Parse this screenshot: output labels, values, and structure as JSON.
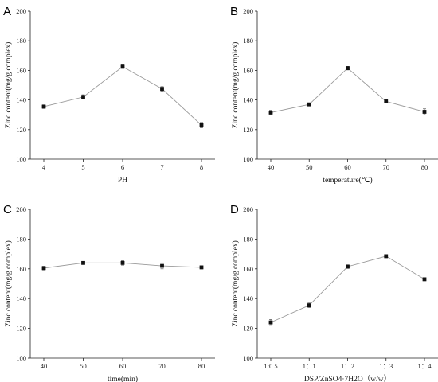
{
  "chart_data": [
    {
      "panel": "A",
      "type": "line",
      "categories": [
        "4",
        "5",
        "6",
        "7",
        "8"
      ],
      "values": [
        135.5,
        142,
        162.5,
        147.5,
        123
      ],
      "errors": [
        1.2,
        1.5,
        1.2,
        1.5,
        1.8
      ],
      "xlabel": "PH",
      "ylabel": "Zinc content(mg/g complex)",
      "ylim": [
        100,
        200
      ],
      "yticks": [
        "100",
        "120",
        "140",
        "160",
        "180",
        "200"
      ],
      "grid": false
    },
    {
      "panel": "B",
      "type": "line",
      "categories": [
        "40",
        "50",
        "60",
        "70",
        "80"
      ],
      "values": [
        131.5,
        137,
        161.5,
        139,
        132
      ],
      "errors": [
        1.5,
        1.0,
        1.2,
        1.0,
        2.0
      ],
      "xlabel": "temperature(℃)",
      "ylabel": "Zinc content(mg/g complex)",
      "ylim": [
        100,
        200
      ],
      "yticks": [
        "100",
        "120",
        "140",
        "160",
        "180",
        "200"
      ],
      "grid": false
    },
    {
      "panel": "C",
      "type": "line",
      "categories": [
        "40",
        "50",
        "60",
        "70",
        "80"
      ],
      "values": [
        160.5,
        164,
        164,
        162,
        161
      ],
      "errors": [
        1.2,
        1.0,
        1.5,
        2.0,
        1.0
      ],
      "xlabel": "time(min)",
      "ylabel": "Zinc content(mg/g complex)",
      "ylim": [
        100,
        200
      ],
      "yticks": [
        "100",
        "120",
        "140",
        "160",
        "180",
        "200"
      ],
      "grid": false
    },
    {
      "panel": "D",
      "type": "line",
      "categories": [
        "1:0.5",
        "1：1",
        "1：2",
        "1：3",
        "1：4"
      ],
      "values": [
        124,
        135.5,
        161.5,
        168.5,
        153
      ],
      "errors": [
        2.0,
        1.5,
        1.2,
        1.0,
        1.0
      ],
      "xlabel": "DSP/ZnSO4·7H2O（w/w）",
      "ylabel": "Zinc content(mg/g complex)",
      "ylim": [
        100,
        200
      ],
      "yticks": [
        "100",
        "120",
        "140",
        "160",
        "180",
        "200"
      ],
      "grid": false
    }
  ],
  "colors": {
    "line": "#9a9a9a",
    "marker": "#111111",
    "axis": "#222222"
  }
}
